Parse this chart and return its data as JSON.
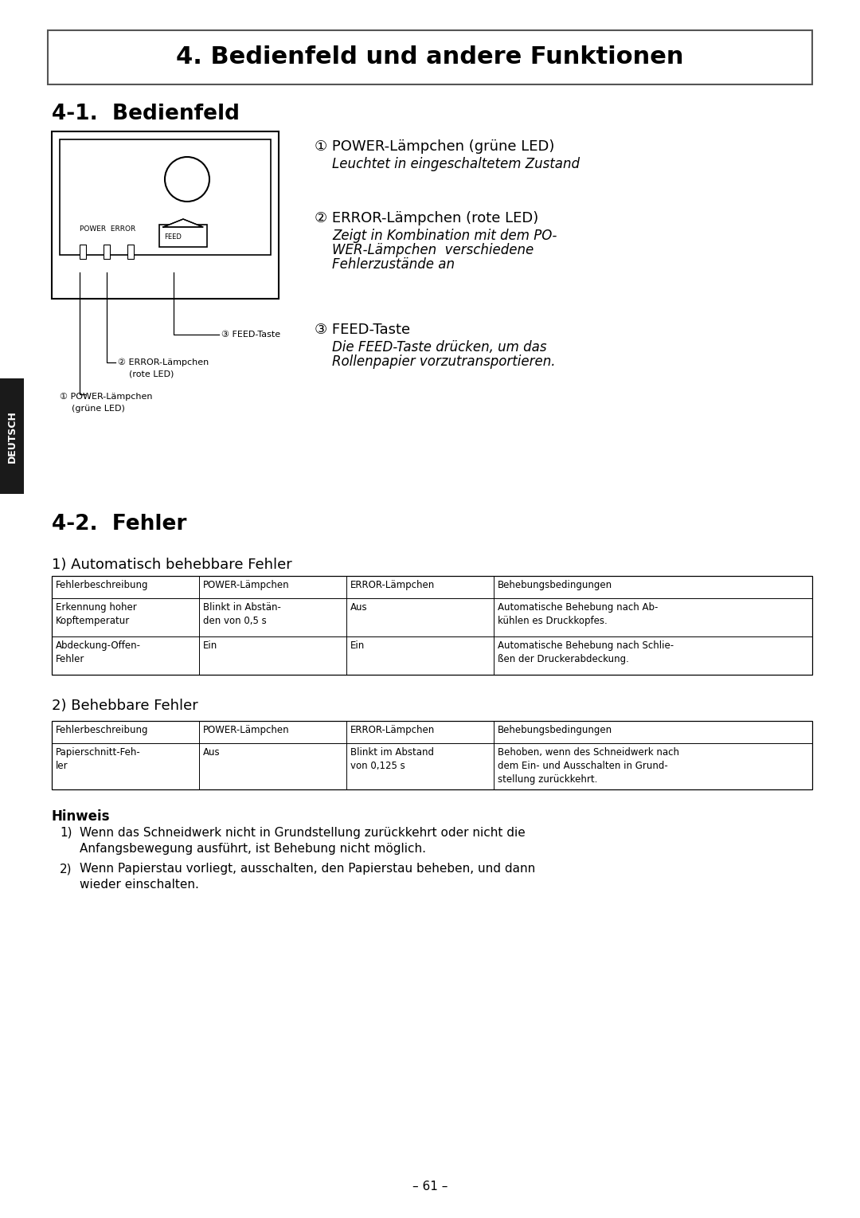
{
  "title": "4. Bedienfeld und andere Funktionen",
  "section1_title": "4-1.  Bedienfeld",
  "section2_title": "4-2.  Fehler",
  "subsection1": "1) Automatisch behebbare Fehler",
  "subsection2": "2) Behebbare Fehler",
  "hinweis_title": "Hinweis",
  "hinweis_items": [
    "Wenn das Schneidwerk nicht in Grundstellung zurückkehrt oder nicht die\nAnfangsbewegung ausführt, ist Behebung nicht möglich.",
    "Wenn Papierstau vorliegt, ausschalten, den Papierstau beheben, und dann\nwieder einschalten."
  ],
  "right_annotations": [
    {
      "num": "①",
      "title": "POWER-Lämpchen (grüne LED)",
      "body": "Leuchtet in eingeschaltetem Zustand"
    },
    {
      "num": "②",
      "title": "ERROR-Lämpchen (rote LED)",
      "body": "Zeigt in Kombination mit dem PO-\nWER-Lämpchen  verschiedene\nFehlerzustände an"
    },
    {
      "num": "③",
      "title": "FEED-Taste",
      "body": "Die FEED-Taste drücken, um das\nRollenpapier vorzutransportieren."
    }
  ],
  "table1_headers": [
    "Fehlerbeschreibung",
    "POWER-Lämpchen",
    "ERROR-Lämpchen",
    "Behebungsbedingungen"
  ],
  "table1_rows": [
    [
      "Erkennung hoher\nKopftemperatur",
      "Blinkt in Abstän-\nden von 0,5 s",
      "Aus",
      "Automatische Behebung nach Ab-\nkühlen es Druckkopfes."
    ],
    [
      "Abdeckung-Offen-\nFehler",
      "Ein",
      "Ein",
      "Automatische Behebung nach Schlie-\nßen der Druckerabdeckung."
    ]
  ],
  "table2_headers": [
    "Fehlerbeschreibung",
    "POWER-Lämpchen",
    "ERROR-Lämpchen",
    "Behebungsbedingungen"
  ],
  "table2_rows": [
    [
      "Papierschnitt-Feh-\nler",
      "Aus",
      "Blinkt im Abstand\nvon 0,125 s",
      "Behoben, wenn des Schneidwerk nach\ndem Ein- und Ausschalten in Grund-\nstellung zurückkehrt."
    ]
  ],
  "page_num": "– 61 –",
  "deutsch_label": "DEUTSCH",
  "bg_color": "#ffffff",
  "text_color": "#000000",
  "sidebar_color": "#1a1a1a"
}
